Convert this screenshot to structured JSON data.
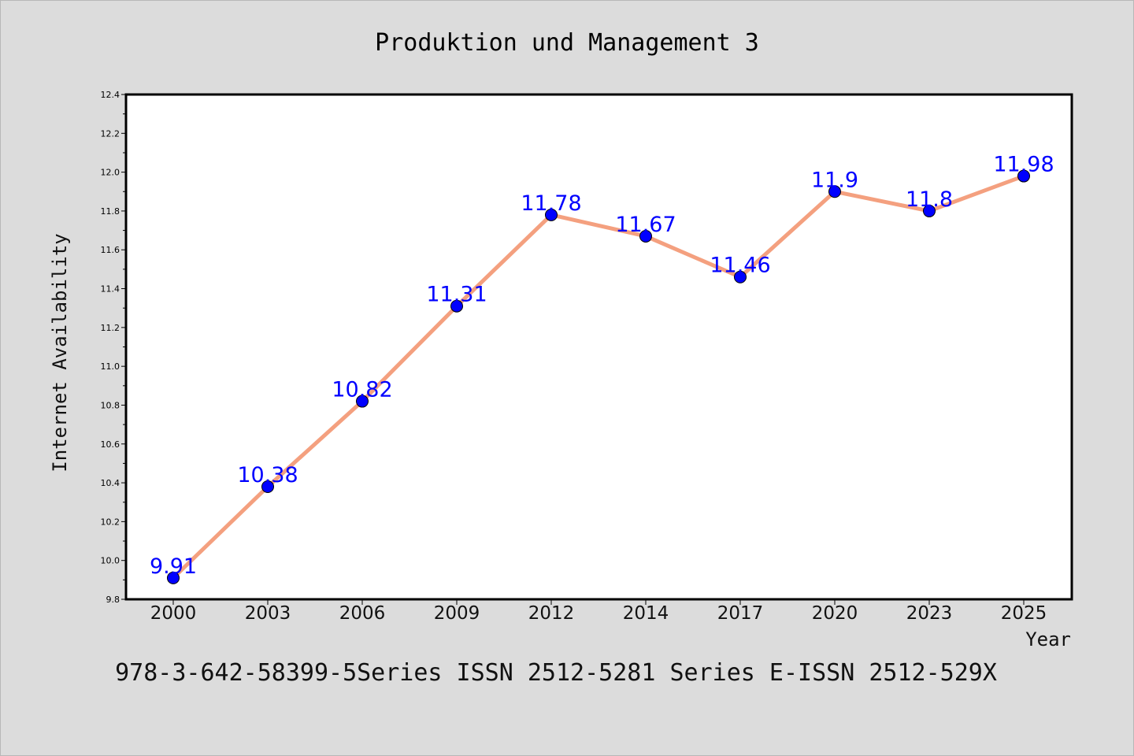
{
  "chart_data": {
    "type": "line",
    "title": "Produktion und Management 3",
    "xlabel": "Year",
    "ylabel": "Internet Availability",
    "categories": [
      "2000",
      "2003",
      "2006",
      "2009",
      "2012",
      "2014",
      "2017",
      "2020",
      "2023",
      "2025"
    ],
    "series": [
      {
        "values": [
          9.91,
          10.38,
          10.82,
          11.31,
          11.78,
          11.67,
          11.46,
          11.9,
          11.8,
          11.98
        ],
        "data_labels": [
          "9.91",
          "10.38",
          "10.82",
          "11.31",
          "11.78",
          "11.67",
          "11.46",
          "11.9",
          "11.8",
          "11.98"
        ]
      }
    ],
    "ylim": [
      9.8,
      12.4
    ],
    "yticks": [
      "9.8",
      "10.0",
      "10.2",
      "10.4",
      "10.6",
      "10.8",
      "11.0",
      "11.2",
      "11.4",
      "11.6",
      "11.8",
      "12.0",
      "12.2",
      "12.4"
    ],
    "grid": false,
    "legend": "none",
    "colors": {
      "line": "#f4a07f",
      "marker": "#0000ff",
      "data_label": "#0000ff",
      "background": "#dcdcdc",
      "plot_area": "#ffffff"
    }
  },
  "footer": {
    "text": "978-3-642-58399-5Series ISSN 2512-5281 Series E-ISSN 2512-529X"
  }
}
